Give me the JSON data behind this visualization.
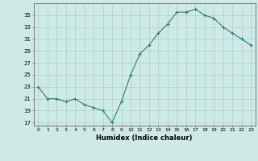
{
  "x": [
    0,
    1,
    2,
    3,
    4,
    5,
    6,
    7,
    8,
    9,
    10,
    11,
    12,
    13,
    14,
    15,
    16,
    17,
    18,
    19,
    20,
    21,
    22,
    23
  ],
  "y": [
    23,
    21,
    21,
    20.5,
    21,
    20,
    19.5,
    19,
    17,
    20.5,
    25,
    28.5,
    30,
    32,
    33.5,
    35.5,
    35.5,
    36,
    35,
    34.5,
    33,
    32,
    31,
    30
  ],
  "line_color": "#2e7d6e",
  "marker": "+",
  "bg_color": "#ceeae7",
  "grid_color": "#aacfcc",
  "xlabel": "Humidex (Indice chaleur)",
  "yticks": [
    17,
    19,
    21,
    23,
    25,
    27,
    29,
    31,
    33,
    35
  ],
  "ylim": [
    16.5,
    37
  ],
  "xlim": [
    -0.5,
    23.5
  ]
}
